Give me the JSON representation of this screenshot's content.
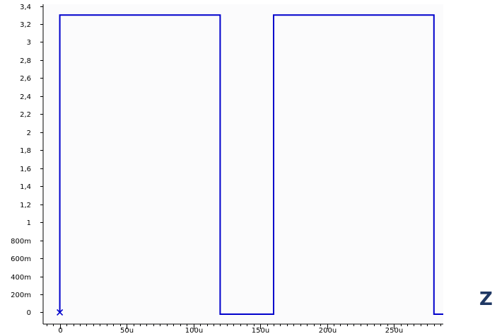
{
  "colors": {
    "background": "#ffffff",
    "plot_background": "#fbfbfc",
    "axis": "#000000",
    "trace": "#0000cc",
    "corner_letter": "#1f3864"
  },
  "corner_label": "Z",
  "chart_data": {
    "type": "line",
    "title": "",
    "xlabel": "",
    "ylabel": "",
    "xlim": [
      -12.5,
      287
    ],
    "ylim": [
      -0.13,
      3.42
    ],
    "grid": false,
    "x_major_ticks": [
      0,
      50,
      100,
      150,
      200,
      250
    ],
    "x_tick_labels": [
      "0",
      "50u",
      "100u",
      "150u",
      "200u",
      "250u"
    ],
    "x_minor_step": 5,
    "y_ticks": [
      0,
      0.2,
      0.4,
      0.6,
      0.8,
      1.0,
      1.2,
      1.4,
      1.6,
      1.8,
      2.0,
      2.2,
      2.4,
      2.6,
      2.8,
      3.0,
      3.2,
      3.4
    ],
    "y_tick_labels": [
      "0",
      "200m",
      "400m",
      "600m",
      "800m",
      "1",
      "1,2",
      "1,4",
      "1,6",
      "1,8",
      "2",
      "2,2",
      "2,4",
      "2,6",
      "2,8",
      "3",
      "3,2",
      "3,4"
    ],
    "marker": {
      "symbol": "x",
      "x": 0,
      "y": 0
    },
    "series": [
      {
        "x": [
          0,
          0,
          120,
          120,
          160,
          160,
          280,
          280,
          287
        ],
        "values": [
          0,
          3.3,
          3.3,
          -0.02,
          -0.02,
          3.3,
          3.3,
          -0.02,
          -0.02
        ]
      }
    ]
  }
}
